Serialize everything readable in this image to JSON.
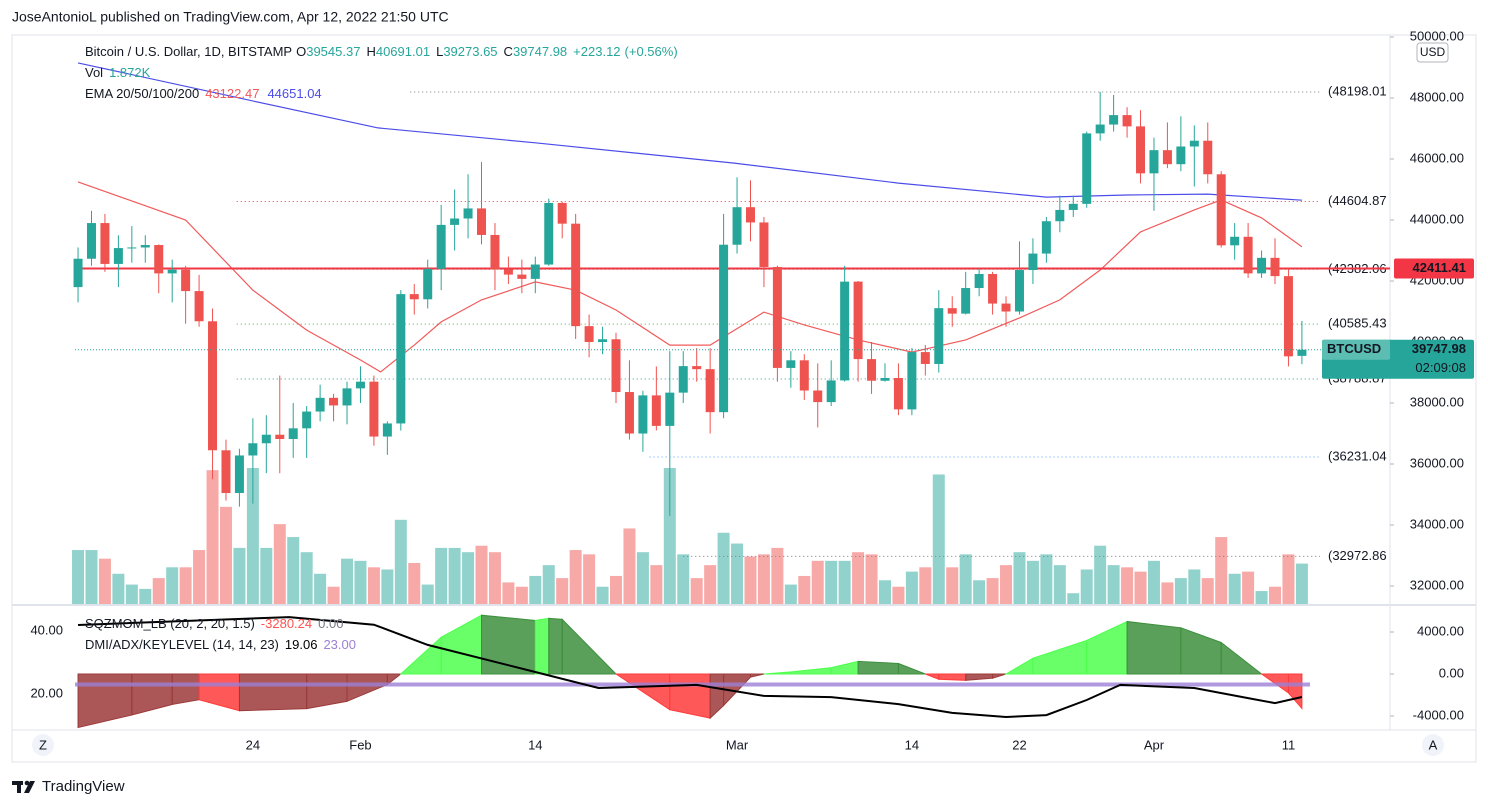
{
  "header": "JoseAntonioL published on TradingView.com, Apr 12, 2022 21:50 UTC",
  "footer": "TradingView",
  "buttons": {
    "left": "Z",
    "right": "A"
  },
  "chart_data": [
    {
      "type": "candlestick",
      "title": "Bitcoin / U.S. Dollar, 1D, BITSTAMP",
      "ohlc_legend": [
        {
          "prefix": "O",
          "value": 39545.37
        },
        {
          "prefix": "H",
          "value": 40691.01
        },
        {
          "prefix": "L",
          "value": 39273.65
        },
        {
          "prefix": "C",
          "value": 39747.98
        }
      ],
      "change": {
        "value": 223.12,
        "label": "+223.12"
      },
      "change_pct": {
        "value": 0.56,
        "label": "(+0.56%)"
      },
      "axis_unit": "USD",
      "categories": [
        null,
        null,
        null,
        null,
        null,
        null,
        null,
        null,
        null,
        null,
        null,
        null,
        null,
        "24",
        null,
        null,
        null,
        null,
        null,
        null,
        null,
        "Feb",
        null,
        null,
        null,
        null,
        null,
        null,
        null,
        null,
        null,
        null,
        null,
        null,
        "14",
        null,
        null,
        null,
        null,
        null,
        null,
        null,
        null,
        null,
        null,
        null,
        null,
        null,
        null,
        "Mar",
        null,
        null,
        null,
        null,
        null,
        null,
        null,
        null,
        null,
        null,
        null,
        null,
        "14",
        null,
        null,
        null,
        null,
        null,
        null,
        null,
        "22",
        null,
        null,
        null,
        null,
        null,
        null,
        null,
        null,
        null,
        "Apr",
        null,
        null,
        null,
        null,
        null,
        null,
        null,
        null,
        null,
        "11",
        null
      ],
      "xlim": [
        -4.91,
        97.55
      ],
      "ylim": [
        31410,
        50066
      ],
      "yticks": [
        {
          "value": 32000,
          "label": "32000.00"
        },
        {
          "value": 34000,
          "label": "34000.00"
        },
        {
          "value": 36000,
          "label": "36000.00"
        },
        {
          "value": 38000,
          "label": "38000.00"
        },
        {
          "value": 40000,
          "label": "40000.00"
        },
        {
          "value": 42000,
          "label": "42000.00"
        },
        {
          "value": 44000,
          "label": "44000.00"
        },
        {
          "value": 46000,
          "label": "46000.00"
        },
        {
          "value": 48000,
          "label": "48000.00"
        },
        {
          "value": 50000,
          "label": "50000.00"
        }
      ],
      "grid": false,
      "candles": {
        "up_color": "#26a69a",
        "down_color": "#ef5350",
        "open": [
          41800,
          42730,
          43900,
          42560,
          43080,
          43100,
          43180,
          42250,
          42370,
          41670,
          40680,
          36450,
          35050,
          36280,
          36680,
          36960,
          36820,
          37170,
          37720,
          38170,
          37920,
          38480,
          38700,
          36900,
          37330,
          41570,
          41400,
          42400,
          43840,
          44050,
          44380,
          43510,
          42380,
          42210,
          42070,
          42540,
          44560,
          43880,
          40520,
          40000,
          40090,
          38360,
          37000,
          38250,
          37250,
          38340,
          39210,
          39110,
          37700,
          43190,
          44420,
          43920,
          42460,
          39150,
          39400,
          38410,
          38030,
          38740,
          41980,
          39440,
          38730,
          38820,
          37790,
          39670,
          39280,
          41110,
          40930,
          41770,
          42230,
          41260,
          41000,
          42360,
          42900,
          43960,
          44330,
          44530,
          46840,
          47130,
          47440,
          47070,
          45530,
          46290,
          45830,
          46410,
          46600,
          45500,
          43170,
          43450,
          42250,
          42760,
          42160,
          39545.37
        ],
        "high": [
          43100,
          44300,
          44200,
          43500,
          43800,
          43500,
          43200,
          42700,
          42500,
          42200,
          41100,
          36800,
          36500,
          37500,
          37600,
          38900,
          38000,
          37900,
          38600,
          38300,
          38700,
          39200,
          38900,
          37400,
          41700,
          41900,
          42700,
          44500,
          45000,
          45500,
          45900,
          43900,
          42800,
          42700,
          42800,
          44700,
          44600,
          44200,
          40900,
          40500,
          40300,
          39400,
          38400,
          39200,
          39700,
          39700,
          39800,
          39800,
          44200,
          45400,
          45300,
          44100,
          42500,
          39700,
          39600,
          39300,
          39400,
          42500,
          42000,
          40000,
          39300,
          39300,
          39800,
          39900,
          41700,
          41500,
          42300,
          42400,
          42300,
          41500,
          43300,
          43400,
          44100,
          44800,
          44800,
          46900,
          48200,
          48100,
          47700,
          47600,
          46700,
          47200,
          47400,
          47100,
          47200,
          45600,
          43900,
          43900,
          43000,
          43400,
          42400,
          40691.01
        ],
        "low": [
          41300,
          42500,
          42300,
          41800,
          42600,
          42600,
          41600,
          41300,
          40600,
          40500,
          35500,
          34800,
          34600,
          34700,
          35700,
          35700,
          36200,
          36200,
          37400,
          37400,
          37300,
          38000,
          36600,
          36300,
          37100,
          40900,
          41100,
          41700,
          43000,
          43400,
          43200,
          41700,
          41900,
          41600,
          41600,
          42500,
          43400,
          40100,
          39500,
          39600,
          38000,
          36800,
          36400,
          37100,
          34300,
          38000,
          38700,
          37000,
          37500,
          42900,
          43300,
          41800,
          38700,
          38500,
          38100,
          37200,
          37900,
          38700,
          38700,
          38300,
          38700,
          37600,
          37600,
          38900,
          39000,
          40500,
          40900,
          41500,
          40900,
          40500,
          40900,
          41900,
          42600,
          43600,
          44100,
          44400,
          46600,
          46900,
          46700,
          45200,
          44300,
          45700,
          45600,
          45100,
          45200,
          43100,
          42700,
          42100,
          42100,
          41900,
          39200,
          39273.65
        ],
        "close": [
          42730,
          43900,
          42560,
          43080,
          43100,
          43180,
          42250,
          42370,
          41670,
          40680,
          36450,
          35050,
          36280,
          36680,
          36960,
          36820,
          37170,
          37720,
          38170,
          37920,
          38480,
          38700,
          36900,
          37330,
          41570,
          41400,
          42400,
          43840,
          44050,
          44380,
          43510,
          42380,
          42210,
          42070,
          42540,
          44560,
          43880,
          40520,
          40000,
          40090,
          38360,
          37000,
          38250,
          37250,
          38340,
          39210,
          39110,
          37700,
          43190,
          44420,
          43920,
          42460,
          39150,
          39400,
          38410,
          38030,
          38740,
          41980,
          39440,
          38730,
          38820,
          37790,
          39670,
          39280,
          41110,
          40930,
          41770,
          42230,
          41260,
          41000,
          42360,
          42900,
          43960,
          44330,
          44530,
          46840,
          47130,
          47440,
          47070,
          45530,
          46290,
          45830,
          46410,
          46600,
          45500,
          43170,
          43450,
          42250,
          42760,
          42160,
          39530,
          39747.98
        ]
      },
      "volume": {
        "name": "Vol",
        "last": {
          "value": 1.872,
          "label": "1.872K"
        },
        "up_color": "#92d2cc",
        "down_color": "#f7a9a7",
        "values": [
          2.5,
          2.5,
          2.1,
          1.4,
          0.9,
          0.7,
          1.2,
          1.7,
          1.7,
          2.5,
          6.2,
          4.5,
          2.6,
          6.3,
          2.6,
          3.7,
          3.1,
          2.4,
          1.4,
          0.8,
          2.1,
          2.0,
          1.7,
          1.6,
          3.9,
          1.9,
          0.9,
          2.6,
          2.6,
          2.4,
          2.7,
          2.4,
          1.0,
          0.8,
          1.3,
          1.8,
          1.2,
          2.5,
          2.3,
          0.8,
          1.3,
          3.5,
          2.4,
          1.8,
          6.3,
          2.3,
          1.2,
          1.8,
          3.3,
          2.8,
          2.2,
          2.3,
          2.6,
          0.9,
          1.3,
          2.0,
          2.0,
          2.0,
          2.4,
          2.3,
          1.1,
          0.8,
          1.5,
          1.7,
          6.0,
          1.7,
          2.3,
          1.1,
          1.2,
          1.8,
          2.4,
          2.0,
          2.3,
          1.8,
          0.5,
          1.6,
          2.7,
          1.8,
          1.7,
          1.5,
          2.0,
          1.0,
          1.2,
          1.6,
          1.2,
          3.1,
          1.4,
          1.5,
          0.6,
          0.8,
          2.3,
          1.872
        ]
      },
      "ema": {
        "name": "EMA 20/50/100/200",
        "series": [
          {
            "color": "#f05a5a",
            "last": 43122.47,
            "x": [
              0,
              8,
              10,
              13,
              17,
              21,
              22.5,
              25,
              27,
              30,
              34,
              37,
              40,
              44,
              47,
              51,
              54,
              58,
              62,
              66,
              70,
              73,
              76,
              79,
              83,
              85,
              88,
              91
            ],
            "values": [
              45250,
              44000,
              43080,
              41700,
              40390,
              39410,
              39020,
              39900,
              40660,
              41380,
              41970,
              41700,
              41050,
              39900,
              39900,
              40980,
              40560,
              40070,
              39670,
              40070,
              40790,
              41380,
              42360,
              43610,
              44330,
              44660,
              44070,
              43122.47
            ]
          },
          {
            "color": "#4b4de8",
            "last": 44651.04,
            "x": [
              0,
              12.7,
              22.3,
              34,
              48.7,
              61,
              72,
              78,
              84,
              91
            ],
            "values": [
              49150,
              47930,
              47020,
              46530,
              45870,
              45210,
              44750,
              44820,
              44850,
              44651.04
            ]
          }
        ]
      },
      "levels": [
        {
          "value": 48198.01,
          "label": "(48198.01",
          "color": "#787b86",
          "from": 24.7
        },
        {
          "value": 44604.87,
          "label": "(44604.87",
          "color": "#f23645",
          "from": 11.8
        },
        {
          "value": 42382.06,
          "label": "(42382.06",
          "color": "#4caf50",
          "from": 11.8
        },
        {
          "value": 40585.43,
          "label": "(40585.43",
          "color": "#4caf50",
          "from": 11.8
        },
        {
          "value": 38788.87,
          "label": "(38788.87",
          "color": "#26a69a",
          "from": 11.8
        },
        {
          "value": 36231.04,
          "label": "(36231.04",
          "color": "#5b9cf6",
          "from": 42.5
        },
        {
          "value": 32972.86,
          "label": "(32972.86",
          "color": "#787b86",
          "from": 45
        }
      ],
      "alert_line": {
        "value": 42411.41,
        "color": "#f23645"
      },
      "last_price": {
        "symbol": "BTCUSD",
        "value": 39747.98,
        "countdown": "02:09:08",
        "color": "#26a69a"
      }
    },
    {
      "type": "squeeze_momentum",
      "xlim": [
        -4.91,
        97.55
      ],
      "ylim": [
        -5333,
        6476
      ],
      "yticks": [
        {
          "value": 4000,
          "label": "4000.00"
        },
        {
          "value": 0,
          "label": "0.00"
        },
        {
          "value": -4000,
          "label": "-4000.00"
        }
      ],
      "y2lim": [
        8.57,
        47.94
      ],
      "y2ticks": [
        {
          "value": 20,
          "label": "20.00"
        },
        {
          "value": 40,
          "label": "40.00"
        }
      ],
      "series": [
        {
          "name": "SQZMOM_LB (20, 2, 20, 1.5)",
          "last": -3280.24,
          "last_color": "#ff5252",
          "signal": {
            "value": 0,
            "label": "0.00"
          },
          "colors": {
            "rising_positive": "#4dff4d",
            "falling_positive": "#3d8f3d",
            "falling_negative": "#ff3b3b",
            "rising_negative": "#9c3a3a"
          },
          "x": [
            0,
            4,
            7,
            9,
            12,
            17,
            20,
            23,
            24,
            27,
            30,
            34,
            35,
            36,
            40,
            44,
            47,
            48,
            50,
            51,
            53,
            56,
            58,
            61,
            63,
            64,
            66,
            68,
            69,
            71,
            75,
            78,
            82,
            85,
            88,
            90,
            91
          ],
          "values": [
            -5100,
            -3900,
            -2900,
            -2450,
            -3500,
            -3300,
            -2600,
            -1000,
            0,
            3500,
            5600,
            5100,
            5300,
            5200,
            0,
            -3400,
            -4200,
            -3000,
            -300,
            0,
            200,
            600,
            1200,
            1000,
            0,
            -500,
            -600,
            -400,
            0,
            1500,
            3200,
            5000,
            4400,
            3000,
            0,
            -1800,
            -3280.24
          ]
        },
        {
          "name": "DMI/ADX/KEYLEVEL (14, 14, 23)",
          "axis": "y2",
          "color": "#000000",
          "last": 19.06,
          "key_level": {
            "value": 23,
            "label": "23.00",
            "color": "#9c7fd6"
          },
          "x": [
            0,
            15.7,
            22,
            26,
            34,
            38.7,
            46,
            51,
            56,
            61,
            65,
            69,
            72,
            75,
            77.5,
            83,
            87,
            89,
            91
          ],
          "values": [
            41.9,
            44.4,
            42,
            35.6,
            27,
            21.9,
            22.9,
            19.4,
            19,
            16.8,
            14,
            12.7,
            13.3,
            18.1,
            22.9,
            21.9,
            18.7,
            17.1,
            19.06
          ]
        }
      ]
    }
  ]
}
